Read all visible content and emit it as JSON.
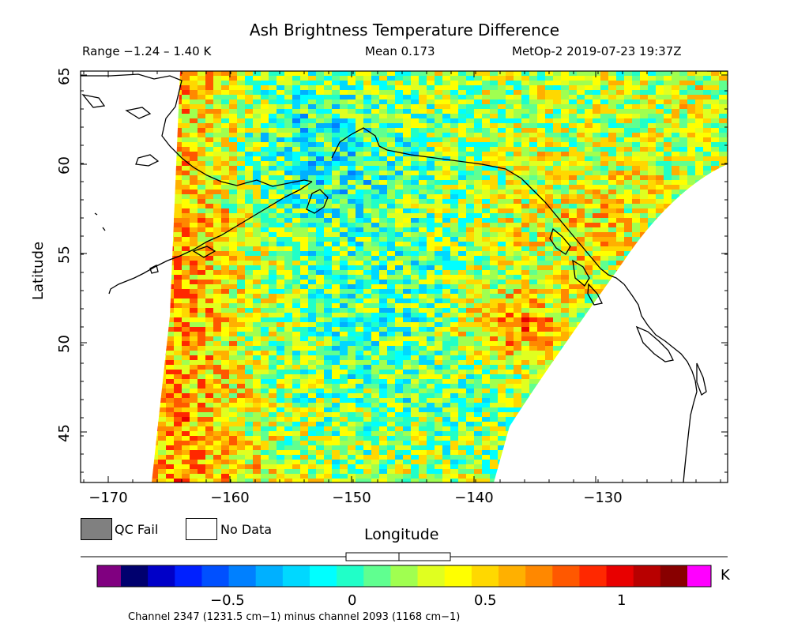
{
  "header": {
    "title": "Ash Brightness Temperature Difference",
    "range": "Range −1.24 – 1.40 K",
    "mean": "Mean 0.173",
    "satellite": "MetOp-2 2019-07-23 19:37Z"
  },
  "axes": {
    "ylabel": "Latitude",
    "xlabel": "Longitude",
    "lat_ticks": [
      "45",
      "50",
      "55",
      "60",
      "65"
    ],
    "lon_ticks": [
      "−170",
      "−160",
      "−150",
      "−140",
      "−130"
    ]
  },
  "legend": {
    "qc_fail": "QC Fail",
    "no_data": "No Data",
    "qc_fail_color": "#808080",
    "no_data_color": "#ffffff"
  },
  "colorbar": {
    "ticks": [
      "−0.5",
      "0",
      "0.5",
      "1"
    ],
    "unit": "K",
    "under_color": "#800080",
    "over_color": "#ff00ff",
    "segments": [
      "#00006e",
      "#0000c8",
      "#0020ff",
      "#0050ff",
      "#0080ff",
      "#00b0ff",
      "#00d8ff",
      "#00ffff",
      "#20ffc8",
      "#60ff90",
      "#a0ff50",
      "#e0ff20",
      "#ffff00",
      "#ffd800",
      "#ffb000",
      "#ff8800",
      "#ff5800",
      "#ff2800",
      "#e80000",
      "#b80000",
      "#880000"
    ]
  },
  "footer": "Channel 2347 (1231.5 cm−1) minus channel 2093 (1168 cm−1)"
}
